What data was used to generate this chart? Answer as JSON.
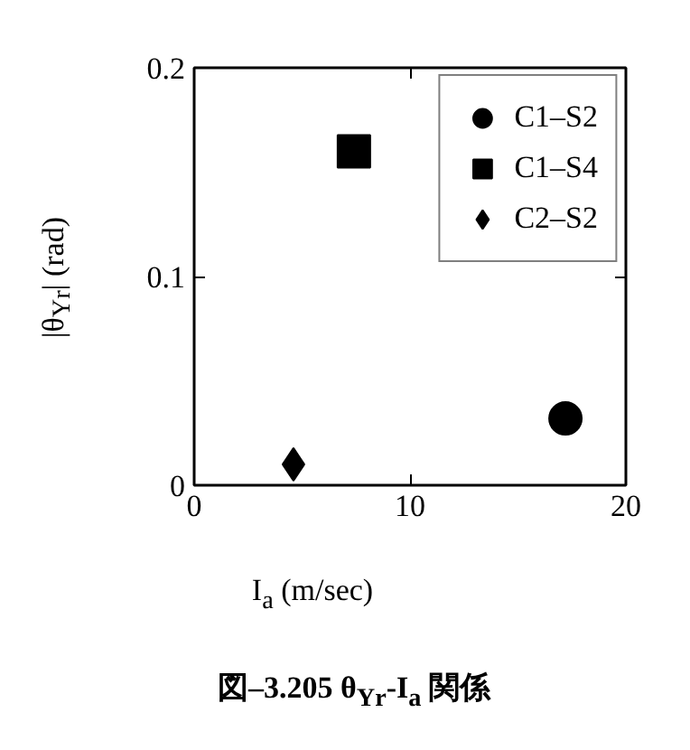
{
  "chart_data": {
    "type": "scatter",
    "xlabel": "I$_{a}$ (m/sec)",
    "ylabel": "|θ$_{Yr}$| (rad)",
    "series": [
      {
        "name": "C1–S2",
        "color": "#000000",
        "marker": "circle",
        "x": [
          17.2
        ],
        "values": [
          0.032
        ]
      },
      {
        "name": "C1–S4",
        "color": "#000000",
        "marker": "square",
        "x": [
          7.4
        ],
        "values": [
          0.16
        ]
      },
      {
        "name": "C2–S2",
        "color": "#000000",
        "marker": "diamond",
        "x": [
          4.6
        ],
        "values": [
          0.01
        ]
      }
    ],
    "xlim": [
      0,
      20
    ],
    "ylim": [
      0,
      0.2
    ],
    "xticks": [
      0,
      10,
      20
    ],
    "yticks": [
      0,
      0.1,
      0.2
    ],
    "grid": false,
    "legend": "top right",
    "annotations": [
      "図–3.205 θ$_{Yr}$-I$_{a}$ 関係"
    ]
  }
}
